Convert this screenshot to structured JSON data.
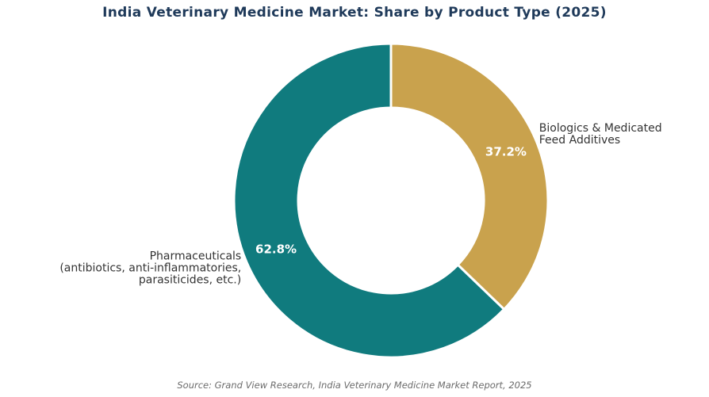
{
  "title": "India Veterinary Medicine Market: Share by Product Type (2025)",
  "source": "Source: Grand View Research, India Veterinary Medicine Market Report, 2025",
  "chart_data": {
    "type": "pie",
    "donut": true,
    "title": "India Veterinary Medicine Market: Share by Product Type (2025)",
    "slices": [
      {
        "label_lines": [
          "Biologics & Medicated",
          "Feed Additives"
        ],
        "value": 37.2,
        "pct_label": "37.2%",
        "color": "#c9a24d"
      },
      {
        "label_lines": [
          "Pharmaceuticals",
          "(antibiotics, anti-inflammatories,",
          "parasiticides, etc.)"
        ],
        "value": 62.8,
        "pct_label": "62.8%",
        "color": "#107b7e"
      }
    ],
    "start": "top",
    "direction": "clockwise"
  }
}
